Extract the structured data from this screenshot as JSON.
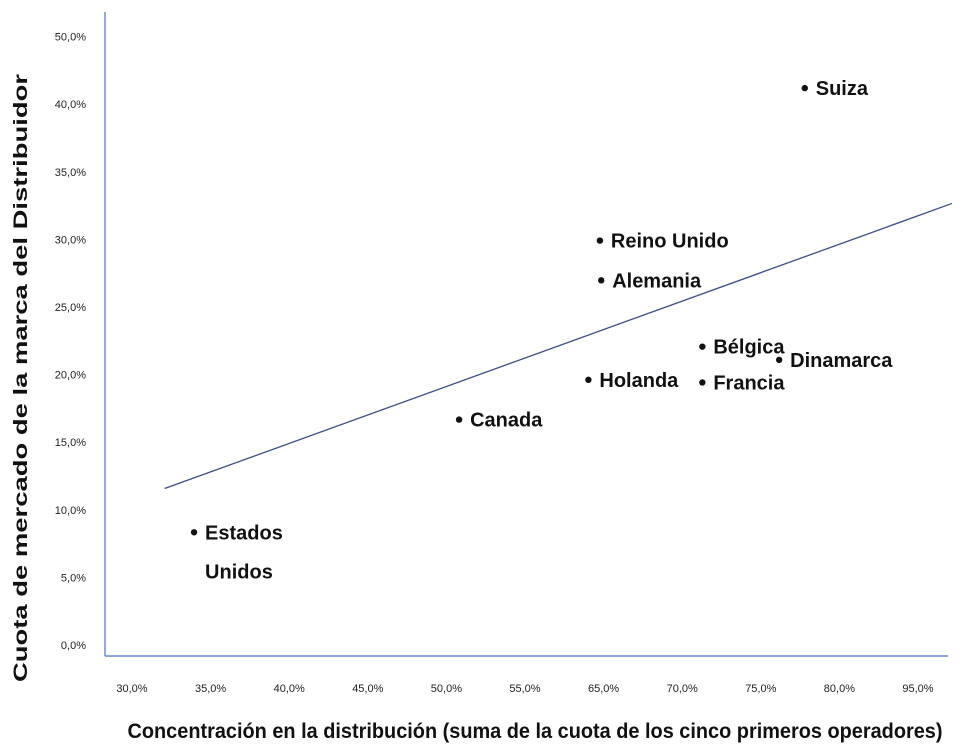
{
  "chart_data": {
    "type": "scatter",
    "xlabel": "Concentración en la distribución (suma de la cuota de los cinco primeros operadores)",
    "ylabel": "Cuota de mercado de la marca del Distribuidor",
    "x_tick_labels": [
      "30,0%",
      "35,0%",
      "40,0%",
      "45,0%",
      "50,0%",
      "55,0%",
      "65,0%",
      "70,0%",
      "75,0%",
      "80,0%",
      "95,0%"
    ],
    "y_tick_labels": [
      "0,0%",
      "5,0%",
      "10,0%",
      "15,0%",
      "20,0%",
      "25,0%",
      "30,0%",
      "35,0%",
      "40,0%",
      "50,0%"
    ],
    "points": [
      {
        "label": "Suiza",
        "x": 84.5,
        "y": 42.0
      },
      {
        "label": "Reino Unido",
        "x": 68.5,
        "y": 30.5
      },
      {
        "label": "Alemania",
        "x": 68.6,
        "y": 27.5
      },
      {
        "label": "Bélgica",
        "x": 76.5,
        "y": 22.5
      },
      {
        "label": "Dinamarca",
        "x": 82.5,
        "y": 21.5
      },
      {
        "label": "Holanda",
        "x": 67.6,
        "y": 20.0
      },
      {
        "label": "Francia",
        "x": 76.5,
        "y": 19.8
      },
      {
        "label": "Canada",
        "x": 57.5,
        "y": 17.0
      },
      {
        "label": "Estados Unidos",
        "x": 36.8,
        "y": 8.5
      }
    ],
    "trendline": {
      "x": [
        34.5,
        96.0
      ],
      "y": [
        11.8,
        33.3
      ]
    },
    "colors": {
      "trendline": "#3b4f86",
      "axis": "#4a72c0",
      "points": "#111111"
    },
    "grid": false,
    "legend": "none"
  }
}
